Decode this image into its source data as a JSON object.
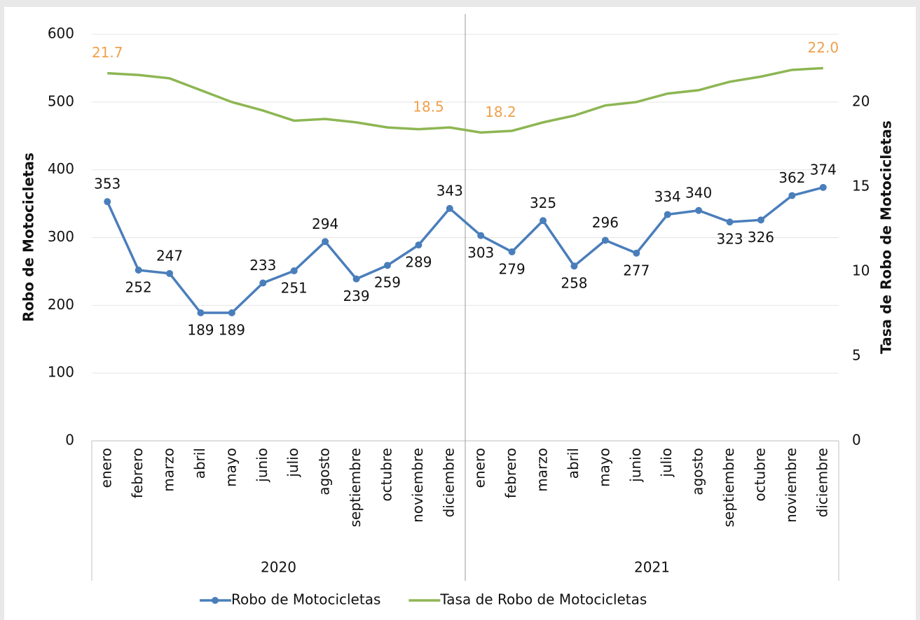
{
  "chart_data": {
    "type": "line",
    "categories": [
      "enero",
      "febrero",
      "marzo",
      "abril",
      "mayo",
      "junio",
      "julio",
      "agosto",
      "septiembre",
      "octubre",
      "noviembre",
      "diciembre",
      "enero",
      "febrero",
      "marzo",
      "abril",
      "mayo",
      "junio",
      "julio",
      "agosto",
      "septiembre",
      "octubre",
      "noviembre",
      "diciembre"
    ],
    "x_groups": [
      "2020",
      "2021"
    ],
    "y_label": "Robo de Motocicletas",
    "y2_label": "Tasa de Robo de Motocicletas",
    "series": [
      {
        "name": "Robo de Motocicletas",
        "color": "#4a7ebb",
        "values": [
          353,
          252,
          247,
          189,
          189,
          233,
          251,
          294,
          239,
          259,
          289,
          343,
          303,
          279,
          325,
          258,
          296,
          277,
          334,
          340,
          323,
          326,
          362,
          374
        ]
      },
      {
        "name": "Tasa de Robo de Motocicletas",
        "color": "#8db653",
        "axis": "y2",
        "label_color": "#f0a04b",
        "values": [
          21.7,
          21.6,
          21.4,
          20.7,
          20.0,
          19.5,
          18.9,
          19.0,
          18.8,
          18.5,
          18.4,
          18.5,
          18.2,
          18.3,
          18.8,
          19.2,
          19.8,
          20.0,
          20.5,
          20.7,
          21.2,
          21.5,
          21.9,
          22.0
        ],
        "value_labels": [
          "21.7",
          null,
          null,
          null,
          null,
          null,
          null,
          null,
          null,
          null,
          null,
          "18.5",
          "18.2",
          null,
          null,
          null,
          null,
          null,
          null,
          null,
          null,
          null,
          null,
          "22.0"
        ]
      }
    ],
    "ylim": [
      0,
      600
    ],
    "yticks": [
      0,
      100,
      200,
      300,
      400,
      500,
      600
    ],
    "y2lim": [
      0,
      24
    ],
    "y2ticks": [
      0,
      5,
      10,
      15,
      20
    ],
    "grid": true,
    "legend": "bottom"
  }
}
